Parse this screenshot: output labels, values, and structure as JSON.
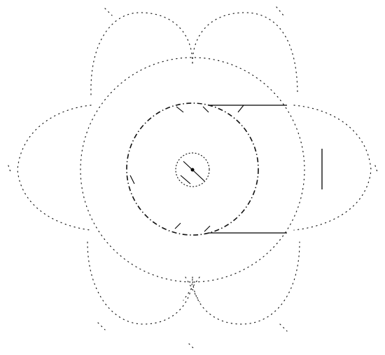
{
  "diagram": {
    "stroke_color": "#000000",
    "background_color": "#ffffff",
    "style": "dotted-and-dashed line drawing",
    "shapes": [
      "outer-ring-circle",
      "lobe-top-left",
      "lobe-top-right",
      "lobe-left",
      "lobe-right",
      "lobe-bottom-left",
      "lobe-bottom-right",
      "dashed-circle",
      "inner-hub-circle",
      "center-dot",
      "connector-bracket"
    ]
  }
}
